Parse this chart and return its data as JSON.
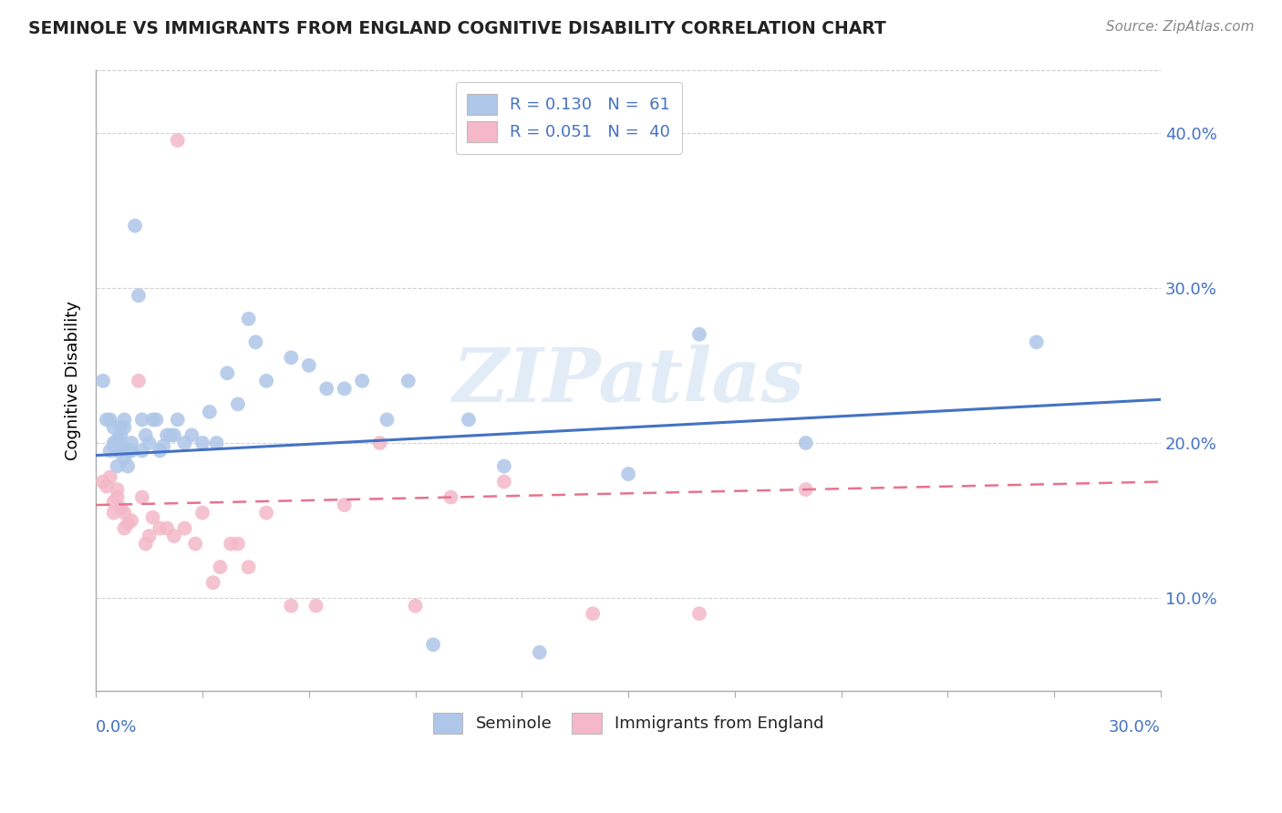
{
  "title": "SEMINOLE VS IMMIGRANTS FROM ENGLAND COGNITIVE DISABILITY CORRELATION CHART",
  "source": "Source: ZipAtlas.com",
  "ylabel": "Cognitive Disability",
  "watermark": "ZIPatlas",
  "legend_seminole": "R = 0.130   N =  61",
  "legend_immigrants": "R = 0.051   N =  40",
  "legend_label1": "Seminole",
  "legend_label2": "Immigrants from England",
  "seminole_color": "#aec6e8",
  "immigrants_color": "#f4b8c8",
  "line_seminole_color": "#4472c4",
  "line_immigrants_color": "#e8728c",
  "xlim": [
    0.0,
    0.3
  ],
  "ylim": [
    0.04,
    0.44
  ],
  "seminole_x": [
    0.002,
    0.003,
    0.004,
    0.004,
    0.005,
    0.005,
    0.005,
    0.006,
    0.006,
    0.006,
    0.006,
    0.007,
    0.007,
    0.007,
    0.007,
    0.008,
    0.008,
    0.008,
    0.009,
    0.009,
    0.01,
    0.01,
    0.011,
    0.012,
    0.013,
    0.013,
    0.014,
    0.015,
    0.016,
    0.017,
    0.018,
    0.019,
    0.02,
    0.021,
    0.022,
    0.023,
    0.025,
    0.027,
    0.03,
    0.032,
    0.034,
    0.037,
    0.04,
    0.043,
    0.045,
    0.048,
    0.055,
    0.06,
    0.065,
    0.07,
    0.075,
    0.082,
    0.088,
    0.095,
    0.105,
    0.115,
    0.125,
    0.15,
    0.17,
    0.2,
    0.265
  ],
  "seminole_y": [
    0.24,
    0.215,
    0.195,
    0.215,
    0.2,
    0.21,
    0.198,
    0.202,
    0.195,
    0.185,
    0.195,
    0.205,
    0.21,
    0.2,
    0.195,
    0.215,
    0.19,
    0.21,
    0.195,
    0.185,
    0.2,
    0.195,
    0.34,
    0.295,
    0.215,
    0.195,
    0.205,
    0.2,
    0.215,
    0.215,
    0.195,
    0.198,
    0.205,
    0.205,
    0.205,
    0.215,
    0.2,
    0.205,
    0.2,
    0.22,
    0.2,
    0.245,
    0.225,
    0.28,
    0.265,
    0.24,
    0.255,
    0.25,
    0.235,
    0.235,
    0.24,
    0.215,
    0.24,
    0.07,
    0.215,
    0.185,
    0.065,
    0.18,
    0.27,
    0.2,
    0.265
  ],
  "immigrants_x": [
    0.002,
    0.003,
    0.004,
    0.005,
    0.005,
    0.006,
    0.006,
    0.007,
    0.008,
    0.008,
    0.009,
    0.01,
    0.012,
    0.013,
    0.014,
    0.015,
    0.016,
    0.018,
    0.02,
    0.022,
    0.023,
    0.025,
    0.028,
    0.03,
    0.033,
    0.035,
    0.038,
    0.04,
    0.043,
    0.048,
    0.055,
    0.062,
    0.07,
    0.08,
    0.09,
    0.1,
    0.115,
    0.14,
    0.17,
    0.2
  ],
  "immigrants_y": [
    0.175,
    0.172,
    0.178,
    0.162,
    0.155,
    0.165,
    0.17,
    0.158,
    0.155,
    0.145,
    0.148,
    0.15,
    0.24,
    0.165,
    0.135,
    0.14,
    0.152,
    0.145,
    0.145,
    0.14,
    0.395,
    0.145,
    0.135,
    0.155,
    0.11,
    0.12,
    0.135,
    0.135,
    0.12,
    0.155,
    0.095,
    0.095,
    0.16,
    0.2,
    0.095,
    0.165,
    0.175,
    0.09,
    0.09,
    0.17
  ],
  "seminole_trend_x": [
    0.0,
    0.3
  ],
  "seminole_trend_y": [
    0.192,
    0.228
  ],
  "immigrants_trend_x": [
    0.0,
    0.3
  ],
  "immigrants_trend_y": [
    0.16,
    0.175
  ],
  "ytick_positions": [
    0.1,
    0.2,
    0.3,
    0.4
  ],
  "ytick_labels": [
    "10.0%",
    "20.0%",
    "30.0%",
    "40.0%"
  ],
  "xtick_label_left": "0.0%",
  "xtick_label_right": "30.0%",
  "tick_color": "#4472c4",
  "grid_color": "#cccccc",
  "title_color": "#222222",
  "source_color": "#888888",
  "ylabel_color": "#000000",
  "legend_text_color": "#4472c4",
  "bottom_legend_color": "#222222",
  "title_fontsize": 13.5,
  "source_fontsize": 11,
  "axis_label_fontsize": 13,
  "tick_fontsize": 13,
  "legend_fontsize": 13,
  "watermark_fontsize": 60,
  "watermark_color": "#b8d0ec",
  "watermark_alpha": 0.4,
  "scatter_size": 130,
  "scatter_alpha": 0.85
}
